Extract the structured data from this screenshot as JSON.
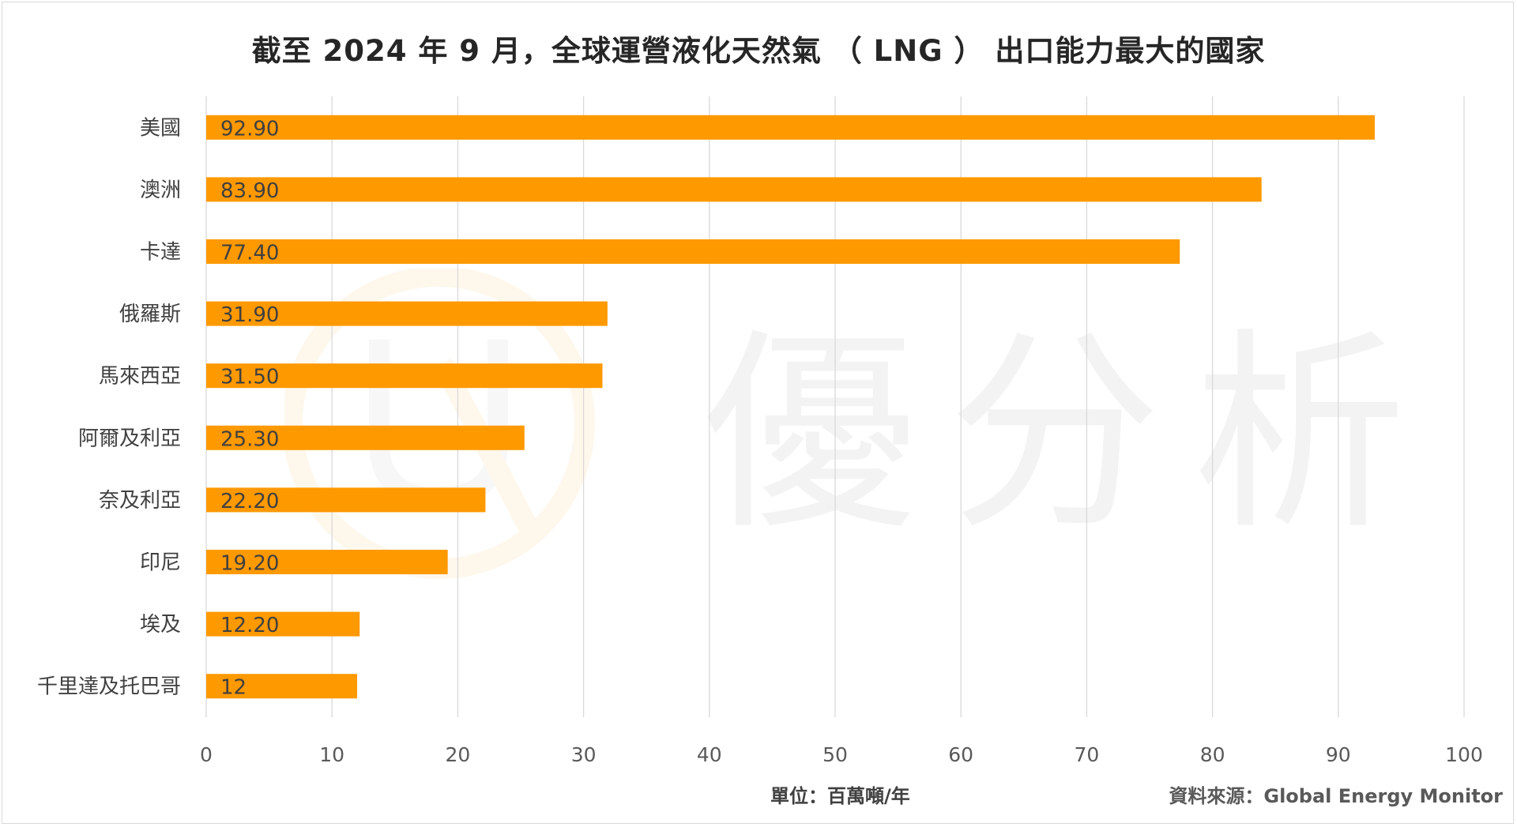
{
  "chart_data": {
    "type": "bar",
    "orientation": "horizontal",
    "title": "截至 2024 年 9 月，全球運營液化天然氣 （ LNG ） 出口能力最大的國家",
    "categories": [
      "美國",
      "澳洲",
      "卡達",
      "俄羅斯",
      "馬來西亞",
      "阿爾及利亞",
      "奈及利亞",
      "印尼",
      "埃及",
      "千里達及托巴哥"
    ],
    "values": [
      92.9,
      83.9,
      77.4,
      31.9,
      31.5,
      25.3,
      22.2,
      19.2,
      12.2,
      12
    ],
    "value_labels": [
      "92.90",
      "83.90",
      "77.40",
      "31.90",
      "31.50",
      "25.30",
      "22.20",
      "19.20",
      "12.20",
      "12"
    ],
    "xlim": [
      0,
      100
    ],
    "x_ticks": [
      0,
      10,
      20,
      30,
      40,
      50,
      60,
      70,
      80,
      90,
      100
    ],
    "xlabel": "單位：百萬噸/年",
    "grid": true,
    "bar_color": "#FF9900"
  },
  "source": "資料來源：Global Energy Monitor",
  "watermark": {
    "text": "優分析"
  }
}
